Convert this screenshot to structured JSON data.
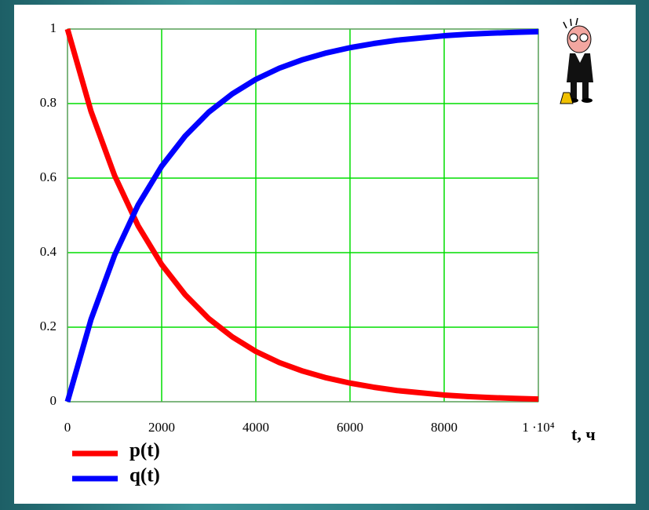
{
  "chart_data": {
    "type": "line",
    "x_label": "t, ч",
    "x": [
      0,
      500,
      1000,
      1500,
      2000,
      2500,
      3000,
      3500,
      4000,
      4500,
      5000,
      5500,
      6000,
      6500,
      7000,
      7500,
      8000,
      8500,
      9000,
      9500,
      10000
    ],
    "series": [
      {
        "name": "p(t)",
        "color": "#ff0000",
        "values": [
          1,
          0.779,
          0.607,
          0.472,
          0.368,
          0.287,
          0.223,
          0.174,
          0.135,
          0.105,
          0.082,
          0.064,
          0.05,
          0.039,
          0.03,
          0.024,
          0.018,
          0.014,
          0.011,
          0.009,
          0.007
        ]
      },
      {
        "name": "q(t)",
        "color": "#0000ff",
        "values": [
          0,
          0.221,
          0.393,
          0.528,
          0.632,
          0.713,
          0.777,
          0.826,
          0.865,
          0.895,
          0.918,
          0.936,
          0.95,
          0.961,
          0.97,
          0.976,
          0.982,
          0.986,
          0.989,
          0.991,
          0.993
        ]
      }
    ],
    "xlim": [
      0,
      10000
    ],
    "xticks": [
      0,
      2000,
      4000,
      6000,
      8000,
      {
        "value": 10000,
        "label": "1 ·10⁴"
      }
    ],
    "ylim": [
      0,
      1
    ],
    "yticks": [
      0,
      0.2,
      0.4,
      0.6,
      0.8,
      1
    ],
    "grid": true,
    "grid_color": "#00dd00"
  }
}
